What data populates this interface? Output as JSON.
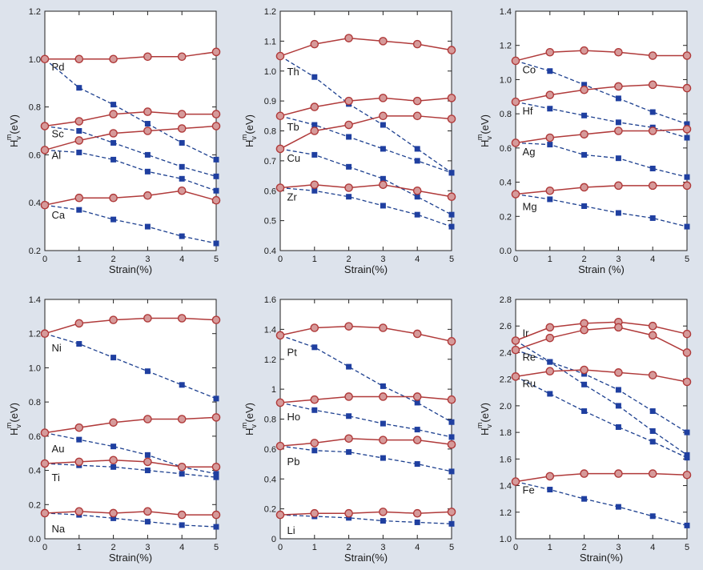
{
  "colors": {
    "strained_line": "#b03a3a",
    "strained_marker_fill": "#d69a9a",
    "unstrained_line": "#1c3f8f",
    "unstrained_marker": "#1f3fa0"
  },
  "axis_text": {
    "ylabel_main": "H",
    "ylabel_sub": "v",
    "ylabel_sup": "m",
    "ylabel_unit": "(eV)"
  },
  "chart_data": [
    {
      "type": "line",
      "xlabel": "Strain(%)",
      "ylim": [
        0.2,
        1.2
      ],
      "x_ticks": [
        "0",
        "1",
        "2",
        "3",
        "4",
        "5"
      ],
      "y_ticks": [
        {
          "v": 0.2,
          "t": "0.2"
        },
        {
          "v": 0.4,
          "t": "0.4"
        },
        {
          "v": 0.6,
          "t": "0.6"
        },
        {
          "v": 0.8,
          "t": "0.8"
        },
        {
          "v": 1.0,
          "t": "1.0"
        },
        {
          "v": 1.2,
          "t": "1.2"
        }
      ],
      "x": [
        0,
        1,
        2,
        3,
        4,
        5
      ],
      "series": [
        {
          "name": "Pd",
          "label_at": [
            0.2,
            0.97
          ],
          "circle": [
            1.0,
            1.0,
            1.0,
            1.01,
            1.01,
            1.03
          ],
          "square": [
            1.0,
            0.88,
            0.81,
            0.73,
            0.65,
            0.58
          ]
        },
        {
          "name": "Sc",
          "label_at": [
            0.2,
            0.69
          ],
          "circle": [
            0.72,
            0.74,
            0.77,
            0.78,
            0.77,
            0.77
          ],
          "square": [
            0.72,
            0.7,
            0.65,
            0.6,
            0.55,
            0.51
          ]
        },
        {
          "name": "Al",
          "label_at": [
            0.2,
            0.6
          ],
          "circle": [
            0.62,
            0.66,
            0.69,
            0.7,
            0.71,
            0.72
          ],
          "square": [
            0.62,
            0.61,
            0.58,
            0.53,
            0.5,
            0.45
          ]
        },
        {
          "name": "Ca",
          "label_at": [
            0.2,
            0.35
          ],
          "circle": [
            0.39,
            0.42,
            0.42,
            0.43,
            0.45,
            0.41
          ],
          "square": [
            0.39,
            0.37,
            0.33,
            0.3,
            0.26,
            0.23
          ]
        }
      ]
    },
    {
      "type": "line",
      "xlabel": "Strain(%)",
      "ylim": [
        0.4,
        1.2
      ],
      "x_ticks": [
        "0",
        "1",
        "2",
        "3",
        "4",
        "5"
      ],
      "y_ticks": [
        {
          "v": 0.4,
          "t": "0.4"
        },
        {
          "v": 0.5,
          "t": "0.5"
        },
        {
          "v": 0.6,
          "t": "0.6"
        },
        {
          "v": 0.7,
          "t": "0.7"
        },
        {
          "v": 0.8,
          "t": "0.8"
        },
        {
          "v": 0.9,
          "t": "0.9"
        },
        {
          "v": 1.0,
          "t": "1.0"
        },
        {
          "v": 1.1,
          "t": "1.1"
        },
        {
          "v": 1.2,
          "t": "1.2"
        }
      ],
      "x": [
        0,
        1,
        2,
        3,
        4,
        5
      ],
      "series": [
        {
          "name": "Th",
          "label_at": [
            0.2,
            1.0
          ],
          "circle": [
            1.05,
            1.09,
            1.11,
            1.1,
            1.09,
            1.07
          ],
          "square": [
            1.05,
            0.98,
            0.89,
            0.82,
            0.74,
            0.66
          ]
        },
        {
          "name": "Tb",
          "label_at": [
            0.2,
            0.815
          ],
          "circle": [
            0.85,
            0.88,
            0.9,
            0.91,
            0.9,
            0.91
          ],
          "square": [
            0.85,
            0.82,
            0.78,
            0.74,
            0.7,
            0.66
          ]
        },
        {
          "name": "Cu",
          "label_at": [
            0.2,
            0.71
          ],
          "circle": [
            0.74,
            0.8,
            0.82,
            0.85,
            0.85,
            0.84
          ],
          "square": [
            0.74,
            0.72,
            0.68,
            0.64,
            0.58,
            0.52
          ]
        },
        {
          "name": "Zr",
          "label_at": [
            0.2,
            0.58
          ],
          "circle": [
            0.61,
            0.62,
            0.61,
            0.62,
            0.6,
            0.58
          ],
          "square": [
            0.61,
            0.6,
            0.58,
            0.55,
            0.52,
            0.48
          ]
        }
      ]
    },
    {
      "type": "line",
      "xlabel": "Strain (%)",
      "ylim": [
        0.0,
        1.4
      ],
      "x_ticks": [
        "0",
        "1",
        "2",
        "3",
        "4",
        "5"
      ],
      "y_ticks": [
        {
          "v": 0.0,
          "t": "0.0"
        },
        {
          "v": 0.2,
          "t": "0.2"
        },
        {
          "v": 0.4,
          "t": "0.4"
        },
        {
          "v": 0.6,
          "t": "0.6"
        },
        {
          "v": 0.8,
          "t": "0.8"
        },
        {
          "v": 1.0,
          "t": "1.0"
        },
        {
          "v": 1.2,
          "t": "1.2"
        },
        {
          "v": 1.4,
          "t": "1.4"
        }
      ],
      "x": [
        0,
        1,
        2,
        3,
        4,
        5
      ],
      "series": [
        {
          "name": "Co",
          "label_at": [
            0.2,
            1.06
          ],
          "circle": [
            1.11,
            1.16,
            1.17,
            1.16,
            1.14,
            1.14
          ],
          "square": [
            1.11,
            1.05,
            0.97,
            0.89,
            0.81,
            0.74
          ]
        },
        {
          "name": "Hf",
          "label_at": [
            0.2,
            0.82
          ],
          "circle": [
            0.87,
            0.91,
            0.94,
            0.96,
            0.97,
            0.95
          ],
          "square": [
            0.87,
            0.83,
            0.79,
            0.75,
            0.72,
            0.66
          ]
        },
        {
          "name": "Ag",
          "label_at": [
            0.2,
            0.58
          ],
          "circle": [
            0.63,
            0.66,
            0.68,
            0.7,
            0.7,
            0.71
          ],
          "square": [
            0.63,
            0.62,
            0.56,
            0.54,
            0.48,
            0.43
          ]
        },
        {
          "name": "Mg",
          "label_at": [
            0.2,
            0.26
          ],
          "circle": [
            0.33,
            0.35,
            0.37,
            0.38,
            0.38,
            0.38
          ],
          "square": [
            0.33,
            0.3,
            0.26,
            0.22,
            0.19,
            0.14
          ]
        }
      ]
    },
    {
      "type": "line",
      "xlabel": "Strain(%)",
      "ylim": [
        0.0,
        1.4
      ],
      "x_ticks": [
        "0",
        "1",
        "2",
        "3",
        "4",
        "5"
      ],
      "y_ticks": [
        {
          "v": 0.0,
          "t": "0.0"
        },
        {
          "v": 0.2,
          "t": "0.2"
        },
        {
          "v": 0.4,
          "t": "0.4"
        },
        {
          "v": 0.6,
          "t": "0.6"
        },
        {
          "v": 0.8,
          "t": "0.8"
        },
        {
          "v": 1.0,
          "t": "1.0"
        },
        {
          "v": 1.2,
          "t": "1.2"
        },
        {
          "v": 1.4,
          "t": "1.4"
        }
      ],
      "x": [
        0,
        1,
        2,
        3,
        4,
        5
      ],
      "series": [
        {
          "name": "Ni",
          "label_at": [
            0.2,
            1.12
          ],
          "circle": [
            1.2,
            1.26,
            1.28,
            1.29,
            1.29,
            1.28
          ],
          "square": [
            1.2,
            1.14,
            1.06,
            0.98,
            0.9,
            0.82
          ]
        },
        {
          "name": "Au",
          "label_at": [
            0.2,
            0.53
          ],
          "circle": [
            0.62,
            0.65,
            0.68,
            0.7,
            0.7,
            0.71
          ],
          "square": [
            0.62,
            0.58,
            0.54,
            0.49,
            0.42,
            0.38
          ]
        },
        {
          "name": "Ti",
          "label_at": [
            0.2,
            0.36
          ],
          "circle": [
            0.44,
            0.45,
            0.46,
            0.45,
            0.42,
            0.42
          ],
          "square": [
            0.44,
            0.43,
            0.42,
            0.4,
            0.38,
            0.36
          ]
        },
        {
          "name": "Na",
          "label_at": [
            0.2,
            0.06
          ],
          "circle": [
            0.15,
            0.16,
            0.15,
            0.16,
            0.14,
            0.14
          ],
          "square": [
            0.15,
            0.14,
            0.12,
            0.1,
            0.08,
            0.07
          ]
        }
      ]
    },
    {
      "type": "line",
      "xlabel": "Strain(%)",
      "ylim": [
        0.0,
        1.6
      ],
      "x_ticks": [
        "0",
        "1",
        "2",
        "3",
        "4",
        "5"
      ],
      "y_ticks": [
        {
          "v": 0.0,
          "t": "0"
        },
        {
          "v": 0.2,
          "t": "0.2"
        },
        {
          "v": 0.4,
          "t": "0.4"
        },
        {
          "v": 0.6,
          "t": "0.6"
        },
        {
          "v": 0.8,
          "t": "0.8"
        },
        {
          "v": 1.0,
          "t": "1"
        },
        {
          "v": 1.2,
          "t": "1.2"
        },
        {
          "v": 1.4,
          "t": "1.4"
        },
        {
          "v": 1.6,
          "t": "1.6"
        }
      ],
      "x": [
        0,
        1,
        2,
        3,
        4,
        5
      ],
      "series": [
        {
          "name": "Pt",
          "label_at": [
            0.2,
            1.25
          ],
          "circle": [
            1.36,
            1.41,
            1.42,
            1.41,
            1.37,
            1.32
          ],
          "square": [
            1.36,
            1.28,
            1.15,
            1.02,
            0.91,
            0.78
          ]
        },
        {
          "name": "Ho",
          "label_at": [
            0.2,
            0.82
          ],
          "circle": [
            0.91,
            0.93,
            0.95,
            0.95,
            0.95,
            0.93
          ],
          "square": [
            0.91,
            0.86,
            0.82,
            0.77,
            0.73,
            0.68
          ]
        },
        {
          "name": "Pb",
          "label_at": [
            0.2,
            0.52
          ],
          "circle": [
            0.62,
            0.64,
            0.67,
            0.66,
            0.66,
            0.63
          ],
          "square": [
            0.62,
            0.59,
            0.58,
            0.54,
            0.5,
            0.45
          ]
        },
        {
          "name": "Li",
          "label_at": [
            0.2,
            0.06
          ],
          "circle": [
            0.16,
            0.17,
            0.17,
            0.18,
            0.17,
            0.18
          ],
          "square": [
            0.16,
            0.15,
            0.14,
            0.12,
            0.11,
            0.1
          ]
        }
      ]
    },
    {
      "type": "line",
      "xlabel": "Strain(%)",
      "ylim": [
        1.0,
        2.8
      ],
      "x_ticks": [
        "0",
        "1",
        "2",
        "3",
        "4",
        "5"
      ],
      "y_ticks": [
        {
          "v": 1.0,
          "t": "1.0"
        },
        {
          "v": 1.2,
          "t": "1.2"
        },
        {
          "v": 1.4,
          "t": "1.4"
        },
        {
          "v": 1.6,
          "t": "1.6"
        },
        {
          "v": 1.8,
          "t": "1.8"
        },
        {
          "v": 2.0,
          "t": "2.0"
        },
        {
          "v": 2.2,
          "t": "2.2"
        },
        {
          "v": 2.4,
          "t": "2.4"
        },
        {
          "v": 2.6,
          "t": "2.6"
        },
        {
          "v": 2.8,
          "t": "2.8"
        }
      ],
      "x": [
        0,
        1,
        2,
        3,
        4,
        5
      ],
      "series": [
        {
          "name": "Ir",
          "label_at": [
            0.2,
            2.55
          ],
          "circle": [
            2.49,
            2.59,
            2.62,
            2.63,
            2.6,
            2.54
          ],
          "square": [
            2.49,
            2.33,
            2.16,
            2.0,
            1.81,
            1.63
          ]
        },
        {
          "name": "Re",
          "label_at": [
            0.2,
            2.37
          ],
          "circle": [
            2.42,
            2.51,
            2.57,
            2.59,
            2.53,
            2.4
          ],
          "square": [
            2.42,
            2.33,
            2.24,
            2.12,
            1.96,
            1.8
          ]
        },
        {
          "name": "Ru",
          "label_at": [
            0.2,
            2.17
          ],
          "circle": [
            2.22,
            2.26,
            2.27,
            2.25,
            2.23,
            2.18
          ],
          "square": [
            2.22,
            2.09,
            1.96,
            1.84,
            1.73,
            1.61
          ]
        },
        {
          "name": "Fe",
          "label_at": [
            0.2,
            1.37
          ],
          "circle": [
            1.43,
            1.47,
            1.49,
            1.49,
            1.49,
            1.48
          ],
          "square": [
            1.43,
            1.37,
            1.3,
            1.24,
            1.17,
            1.1
          ]
        }
      ]
    }
  ]
}
